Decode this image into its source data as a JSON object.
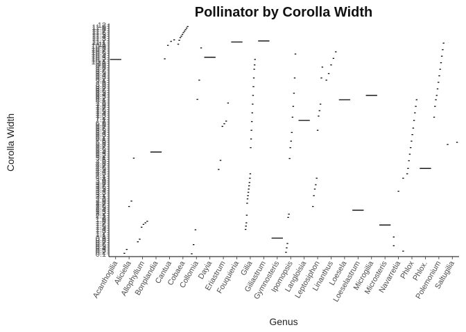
{
  "chart_data": {
    "type": "scatter",
    "title": "Pollinator by Corolla Width",
    "xlabel": "Genus",
    "ylabel": "Corolla Width",
    "grid": false,
    "legend": "none",
    "categories": [
      "Acanthogilia",
      "Aliciella",
      "Allophyllum",
      "Bonplandia",
      "Cantua",
      "Cobaea",
      "Collomia",
      "Dayia",
      "Eriastrum",
      "Fouquieria",
      "Gilia",
      "Giliastrum",
      "Gymnosteris",
      "Ipomopsis",
      "Langloisia",
      "Leptosiphon",
      "Linanthus",
      "Loesela",
      "Loeselastrum",
      "Microgilia",
      "Microsteris",
      "Navarretia",
      "Phlox",
      "Phlox.",
      "Polemonium",
      "Saltugilia"
    ],
    "y_ticks": [
      "0.1",
      "0.2",
      "0.3",
      "0.4",
      "0.5",
      "0.6",
      "0.7",
      "0.8",
      "0.9",
      "1",
      "1.1",
      "1.2",
      "1.3",
      "1.4",
      "1.5",
      "1.6",
      "1.7",
      "1.8",
      "1.9",
      "2",
      "2.1",
      "2.2",
      "2.3",
      "2.4",
      "2.5",
      "2.6",
      "2.7",
      "2.8",
      "2.9",
      "3",
      "3.1",
      "3.2",
      "3.3",
      "3.4",
      "3.5",
      "3.6",
      "3.7",
      "3.8",
      "3.9",
      "4",
      "4.1",
      "4.2",
      "4.3",
      "4.4",
      "4.5",
      "4.6",
      "4.7",
      "4.8",
      "4.9",
      "5",
      "5.1",
      "5.2",
      "5.3",
      "5.4",
      "5.5",
      "5.6",
      "5.7",
      "5.8",
      "5.9",
      "6",
      "6.1",
      "6.2",
      "6.3",
      "6.4",
      "6.5",
      "6.6",
      "6.7",
      "6.8",
      "6.9",
      "7",
      "7.1",
      "7.2",
      "7.3",
      "7.4",
      "7.5",
      "7.6",
      "7.7",
      "7.8",
      "7.9",
      "8",
      "8.1",
      "8.2",
      "8.3",
      "8.4",
      "8.5",
      "8.6",
      "8.7",
      "8.8",
      "8.9",
      "9",
      "9.1",
      "9.2",
      "9.3",
      "9.4",
      "9.5",
      "9.6",
      "9.7",
      "9.8",
      "9.9",
      "10",
      "10.1",
      "10.2",
      "10.3",
      "10.4",
      "10.5",
      "10.6",
      "10.7",
      "10.8",
      "10.9",
      "11",
      "11.1",
      "11.2",
      "11.3",
      "11.4",
      "11.5",
      "11.6",
      "11.7",
      "11.8",
      "11.9",
      "12"
    ],
    "series": [
      {
        "values": [
          [
            0,
            90.5
          ],
          [
            0,
            90.5
          ]
        ]
      },
      {
        "values": [
          [
            1,
            1.5
          ],
          [
            1,
            3.3
          ],
          [
            1,
            23
          ],
          [
            1,
            25.5
          ],
          [
            1,
            45.2
          ]
        ]
      },
      {
        "values": [
          [
            2,
            6.8
          ],
          [
            2,
            8
          ],
          [
            2,
            13.5
          ],
          [
            2,
            14.8
          ],
          [
            2,
            15.5
          ],
          [
            2,
            16.2
          ]
        ]
      },
      {
        "values": [
          [
            3,
            48
          ],
          [
            3,
            48
          ]
        ]
      },
      {
        "values": [
          [
            4,
            90.8
          ],
          [
            4,
            97
          ],
          [
            4,
            98.8
          ],
          [
            4,
            99.5
          ]
        ]
      },
      {
        "values": [
          [
            5,
            97.5
          ],
          [
            5,
            99.3
          ],
          [
            5,
            100.5
          ],
          [
            5,
            101.2
          ],
          [
            5,
            102
          ],
          [
            5,
            102.8
          ],
          [
            5,
            103.5
          ],
          [
            5,
            104.2
          ],
          [
            5,
            104.9
          ],
          [
            5,
            105.6
          ]
        ]
      },
      {
        "values": [
          [
            6,
            1.3
          ],
          [
            6,
            5.5
          ],
          [
            6,
            12.3
          ],
          [
            6,
            72.2
          ],
          [
            6,
            81
          ],
          [
            6,
            95.8
          ]
        ]
      },
      {
        "values": [
          [
            7,
            91.5
          ],
          [
            7,
            91.5
          ]
        ]
      },
      {
        "values": [
          [
            8,
            40
          ],
          [
            8,
            44.2
          ],
          [
            8,
            59.8
          ],
          [
            8,
            61
          ],
          [
            8,
            62.2
          ],
          [
            8,
            70.5
          ]
        ]
      },
      {
        "values": [
          [
            9,
            98.5
          ],
          [
            9,
            98.5
          ]
        ]
      },
      {
        "values": [
          [
            10,
            12.5
          ],
          [
            10,
            14
          ],
          [
            10,
            15.5
          ],
          [
            10,
            19
          ],
          [
            10,
            24.5
          ],
          [
            10,
            26.5
          ],
          [
            10,
            28
          ],
          [
            10,
            29.5
          ],
          [
            10,
            31
          ],
          [
            10,
            32.5
          ],
          [
            10,
            34
          ],
          [
            10,
            36
          ],
          [
            10,
            38
          ],
          [
            10,
            50
          ],
          [
            10,
            54
          ],
          [
            10,
            58
          ],
          [
            10,
            62
          ],
          [
            10,
            66
          ],
          [
            10,
            70
          ],
          [
            10,
            74
          ],
          [
            10,
            78
          ],
          [
            10,
            82
          ],
          [
            10,
            86
          ],
          [
            10,
            88
          ],
          [
            10,
            90.5
          ]
        ]
      },
      {
        "values": [
          [
            11,
            99
          ],
          [
            11,
            99
          ]
        ]
      },
      {
        "values": [
          [
            12,
            8.5
          ],
          [
            12,
            8.5
          ]
        ]
      },
      {
        "values": [
          [
            13,
            2
          ],
          [
            13,
            4
          ],
          [
            13,
            6
          ],
          [
            13,
            18
          ],
          [
            13,
            19.5
          ],
          [
            13,
            45
          ],
          [
            13,
            50
          ],
          [
            13,
            53
          ],
          [
            13,
            57
          ],
          [
            13,
            64
          ],
          [
            13,
            69
          ],
          [
            13,
            75
          ],
          [
            13,
            82
          ],
          [
            13,
            93
          ]
        ]
      },
      {
        "values": [
          [
            14,
            62.5
          ],
          [
            14,
            62.5
          ]
        ]
      },
      {
        "values": [
          [
            15,
            23
          ],
          [
            15,
            28
          ],
          [
            15,
            31
          ],
          [
            15,
            33
          ],
          [
            15,
            36
          ],
          [
            15,
            58
          ],
          [
            15,
            64.5
          ],
          [
            15,
            67
          ],
          [
            15,
            70
          ],
          [
            15,
            82
          ],
          [
            15,
            87
          ]
        ]
      },
      {
        "values": [
          [
            16,
            81
          ],
          [
            16,
            84
          ],
          [
            16,
            88
          ],
          [
            16,
            91
          ],
          [
            16,
            94
          ]
        ]
      },
      {
        "values": [
          [
            17,
            72
          ],
          [
            17,
            72
          ]
        ]
      },
      {
        "values": [
          [
            18,
            21.3
          ],
          [
            18,
            21.3
          ]
        ]
      },
      {
        "values": [
          [
            19,
            74
          ],
          [
            19,
            74
          ]
        ]
      },
      {
        "values": [
          [
            20,
            14.5
          ],
          [
            20,
            14.5
          ]
        ]
      },
      {
        "values": [
          [
            21,
            9
          ],
          [
            21,
            30
          ],
          [
            21,
            36
          ]
        ]
      },
      {
        "values": [
          [
            21,
            5
          ],
          [
            21,
            2.5
          ]
        ]
      },
      {
        "values": [
          [
            22,
            38
          ],
          [
            22,
            40.5
          ],
          [
            22,
            44
          ],
          [
            22,
            47
          ],
          [
            22,
            50
          ],
          [
            22,
            53
          ],
          [
            22,
            56
          ],
          [
            22,
            59
          ],
          [
            22,
            62.5
          ],
          [
            22,
            66
          ],
          [
            22,
            69
          ],
          [
            22,
            72
          ]
        ]
      },
      {
        "values": [
          [
            23,
            40.5
          ],
          [
            23,
            40.5
          ]
        ]
      },
      {
        "values": [
          [
            24,
            64
          ],
          [
            24,
            69
          ],
          [
            24,
            72
          ],
          [
            24,
            74
          ],
          [
            24,
            77
          ],
          [
            24,
            80
          ],
          [
            24,
            83
          ],
          [
            24,
            86
          ],
          [
            24,
            89
          ],
          [
            24,
            92
          ],
          [
            24,
            95
          ],
          [
            24,
            98
          ]
        ]
      },
      {
        "values": [
          [
            25,
            51.5
          ],
          [
            25,
            52.5
          ]
        ]
      }
    ],
    "ylim": [
      0,
      107
    ]
  }
}
